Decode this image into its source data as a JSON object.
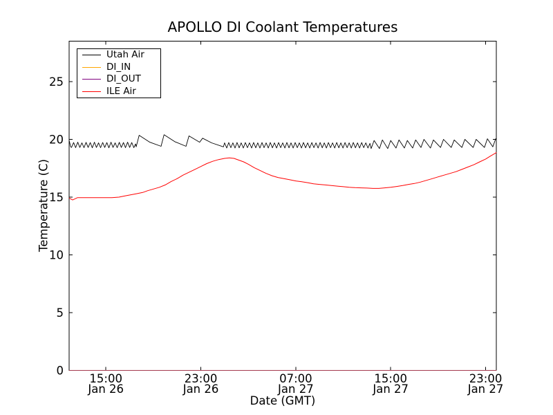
{
  "chart_data": {
    "type": "line",
    "title": "APOLLO DI Coolant Temperatures",
    "xlabel": "Date (GMT)",
    "ylabel": "Temperature (C)",
    "x_unit": "hours since Jan 26 00:00 GMT",
    "xlim": [
      11.9,
      47.9
    ],
    "ylim": [
      0,
      28.5
    ],
    "grid": false,
    "legend_position": "upper left",
    "background_color": "#ffffff",
    "axis_color": "#000000",
    "yticks": [
      0,
      5,
      10,
      15,
      20,
      25
    ],
    "xticks": [
      {
        "value": 15,
        "label": [
          "15:00",
          "Jan 26"
        ]
      },
      {
        "value": 23,
        "label": [
          "23:00",
          "Jan 26"
        ]
      },
      {
        "value": 31,
        "label": [
          "07:00",
          "Jan 27"
        ]
      },
      {
        "value": 39,
        "label": [
          "15:00",
          "Jan 27"
        ]
      },
      {
        "value": 47,
        "label": [
          "23:00",
          "Jan 27"
        ]
      }
    ],
    "series": [
      {
        "name": "Utah Air",
        "color": "#000000",
        "points": [
          [
            11.92,
            19.85
          ],
          [
            12.03,
            19.35
          ],
          [
            12.1,
            19.3
          ],
          [
            12.28,
            19.72
          ],
          [
            12.45,
            19.28
          ],
          [
            12.63,
            19.75
          ],
          [
            12.8,
            19.3
          ],
          [
            12.98,
            19.7
          ],
          [
            13.15,
            19.28
          ],
          [
            13.33,
            19.74
          ],
          [
            13.5,
            19.3
          ],
          [
            13.68,
            19.72
          ],
          [
            13.85,
            19.27
          ],
          [
            14.03,
            19.75
          ],
          [
            14.2,
            19.3
          ],
          [
            14.38,
            19.7
          ],
          [
            14.55,
            19.28
          ],
          [
            14.73,
            19.73
          ],
          [
            14.9,
            19.3
          ],
          [
            15.08,
            19.72
          ],
          [
            15.25,
            19.27
          ],
          [
            15.43,
            19.75
          ],
          [
            15.6,
            19.3
          ],
          [
            15.78,
            19.7
          ],
          [
            15.95,
            19.28
          ],
          [
            16.13,
            19.74
          ],
          [
            16.3,
            19.3
          ],
          [
            16.48,
            19.72
          ],
          [
            16.65,
            19.28
          ],
          [
            16.83,
            19.75
          ],
          [
            17.0,
            19.3
          ],
          [
            17.18,
            19.72
          ],
          [
            17.35,
            19.28
          ],
          [
            17.5,
            19.6
          ],
          [
            17.55,
            19.35
          ],
          [
            17.8,
            20.35
          ],
          [
            18.7,
            19.75
          ],
          [
            19.65,
            19.4
          ],
          [
            19.9,
            20.4
          ],
          [
            20.8,
            19.8
          ],
          [
            21.75,
            19.4
          ],
          [
            22.0,
            20.3
          ],
          [
            22.9,
            19.75
          ],
          [
            23.15,
            20.1
          ],
          [
            23.9,
            19.7
          ],
          [
            24.9,
            19.35
          ],
          [
            25.0,
            19.7
          ],
          [
            25.18,
            19.25
          ],
          [
            25.35,
            19.72
          ],
          [
            25.53,
            19.28
          ],
          [
            25.7,
            19.7
          ],
          [
            25.88,
            19.25
          ],
          [
            26.05,
            19.73
          ],
          [
            26.23,
            19.27
          ],
          [
            26.4,
            19.7
          ],
          [
            26.58,
            19.25
          ],
          [
            26.75,
            19.72
          ],
          [
            26.93,
            19.28
          ],
          [
            27.1,
            19.7
          ],
          [
            27.28,
            19.25
          ],
          [
            27.45,
            19.73
          ],
          [
            27.63,
            19.27
          ],
          [
            27.8,
            19.7
          ],
          [
            27.98,
            19.25
          ],
          [
            28.15,
            19.72
          ],
          [
            28.33,
            19.28
          ],
          [
            28.5,
            19.7
          ],
          [
            28.68,
            19.25
          ],
          [
            28.85,
            19.73
          ],
          [
            29.03,
            19.27
          ],
          [
            29.2,
            19.7
          ],
          [
            29.38,
            19.25
          ],
          [
            29.55,
            19.72
          ],
          [
            29.73,
            19.28
          ],
          [
            29.9,
            19.7
          ],
          [
            30.08,
            19.25
          ],
          [
            30.25,
            19.73
          ],
          [
            30.43,
            19.27
          ],
          [
            30.6,
            19.7
          ],
          [
            30.78,
            19.25
          ],
          [
            30.95,
            19.72
          ],
          [
            31.13,
            19.28
          ],
          [
            31.3,
            19.7
          ],
          [
            31.48,
            19.25
          ],
          [
            31.65,
            19.73
          ],
          [
            31.83,
            19.27
          ],
          [
            32.0,
            19.7
          ],
          [
            32.18,
            19.25
          ],
          [
            32.35,
            19.72
          ],
          [
            32.53,
            19.28
          ],
          [
            32.7,
            19.7
          ],
          [
            32.88,
            19.25
          ],
          [
            33.05,
            19.73
          ],
          [
            33.23,
            19.27
          ],
          [
            33.4,
            19.7
          ],
          [
            33.58,
            19.25
          ],
          [
            33.75,
            19.72
          ],
          [
            33.93,
            19.28
          ],
          [
            34.1,
            19.7
          ],
          [
            34.28,
            19.25
          ],
          [
            34.45,
            19.73
          ],
          [
            34.63,
            19.27
          ],
          [
            34.8,
            19.7
          ],
          [
            34.98,
            19.25
          ],
          [
            35.15,
            19.72
          ],
          [
            35.33,
            19.28
          ],
          [
            35.5,
            19.7
          ],
          [
            35.68,
            19.25
          ],
          [
            35.85,
            19.73
          ],
          [
            36.03,
            19.27
          ],
          [
            36.2,
            19.7
          ],
          [
            36.38,
            19.25
          ],
          [
            36.55,
            19.72
          ],
          [
            36.73,
            19.28
          ],
          [
            36.9,
            19.7
          ],
          [
            37.08,
            19.25
          ],
          [
            37.25,
            19.65
          ],
          [
            37.35,
            19.2
          ],
          [
            37.6,
            19.9
          ],
          [
            38.05,
            19.2
          ],
          [
            38.3,
            19.95
          ],
          [
            38.75,
            19.2
          ],
          [
            39.0,
            19.9
          ],
          [
            39.45,
            19.25
          ],
          [
            39.7,
            19.95
          ],
          [
            40.15,
            19.25
          ],
          [
            40.4,
            19.9
          ],
          [
            40.85,
            19.25
          ],
          [
            41.1,
            19.95
          ],
          [
            41.55,
            19.3
          ],
          [
            41.8,
            20.0
          ],
          [
            42.35,
            19.25
          ],
          [
            42.6,
            19.95
          ],
          [
            43.2,
            19.3
          ],
          [
            43.45,
            20.0
          ],
          [
            44.1,
            19.3
          ],
          [
            44.35,
            19.95
          ],
          [
            45.0,
            19.3
          ],
          [
            45.25,
            20.0
          ],
          [
            45.95,
            19.3
          ],
          [
            46.2,
            20.0
          ],
          [
            46.9,
            19.3
          ],
          [
            47.15,
            20.05
          ],
          [
            47.6,
            19.35
          ],
          [
            47.85,
            20.05
          ],
          [
            47.9,
            19.95
          ]
        ]
      },
      {
        "name": "DI_IN",
        "color": "#ffa500",
        "points": [
          [
            11.92,
            0
          ],
          [
            47.9,
            0
          ]
        ]
      },
      {
        "name": "DI_OUT",
        "color": "#800080",
        "points": [
          [
            11.92,
            0
          ],
          [
            47.9,
            0
          ]
        ]
      },
      {
        "name": "ILE Air",
        "color": "#ff0000",
        "points": [
          [
            11.92,
            14.9
          ],
          [
            12.2,
            14.75
          ],
          [
            12.6,
            14.95
          ],
          [
            13.5,
            14.95
          ],
          [
            14.5,
            14.95
          ],
          [
            15.5,
            14.95
          ],
          [
            16.1,
            15.0
          ],
          [
            16.6,
            15.1
          ],
          [
            17.1,
            15.2
          ],
          [
            17.6,
            15.3
          ],
          [
            18.1,
            15.4
          ],
          [
            18.5,
            15.55
          ],
          [
            19,
            15.7
          ],
          [
            19.5,
            15.85
          ],
          [
            20,
            16.05
          ],
          [
            20.5,
            16.35
          ],
          [
            21,
            16.6
          ],
          [
            21.5,
            16.9
          ],
          [
            22,
            17.15
          ],
          [
            22.5,
            17.4
          ],
          [
            23,
            17.65
          ],
          [
            23.5,
            17.9
          ],
          [
            24,
            18.1
          ],
          [
            24.5,
            18.25
          ],
          [
            25,
            18.35
          ],
          [
            25.4,
            18.4
          ],
          [
            25.8,
            18.35
          ],
          [
            26.2,
            18.2
          ],
          [
            26.6,
            18.05
          ],
          [
            27,
            17.85
          ],
          [
            27.5,
            17.55
          ],
          [
            28,
            17.3
          ],
          [
            28.5,
            17.05
          ],
          [
            29,
            16.85
          ],
          [
            29.5,
            16.7
          ],
          [
            30,
            16.6
          ],
          [
            30.5,
            16.5
          ],
          [
            31,
            16.4
          ],
          [
            31.5,
            16.33
          ],
          [
            32,
            16.25
          ],
          [
            32.5,
            16.15
          ],
          [
            33,
            16.1
          ],
          [
            33.5,
            16.05
          ],
          [
            34,
            16.0
          ],
          [
            34.5,
            15.95
          ],
          [
            35,
            15.9
          ],
          [
            35.5,
            15.85
          ],
          [
            36,
            15.82
          ],
          [
            36.5,
            15.8
          ],
          [
            37,
            15.78
          ],
          [
            37.5,
            15.75
          ],
          [
            38,
            15.75
          ],
          [
            38.5,
            15.8
          ],
          [
            39,
            15.85
          ],
          [
            39.5,
            15.92
          ],
          [
            40,
            16.0
          ],
          [
            40.5,
            16.1
          ],
          [
            41,
            16.18
          ],
          [
            41.5,
            16.3
          ],
          [
            42,
            16.45
          ],
          [
            42.5,
            16.6
          ],
          [
            43,
            16.75
          ],
          [
            43.5,
            16.9
          ],
          [
            44,
            17.05
          ],
          [
            44.5,
            17.2
          ],
          [
            45,
            17.4
          ],
          [
            45.5,
            17.6
          ],
          [
            46,
            17.8
          ],
          [
            46.5,
            18.05
          ],
          [
            47,
            18.3
          ],
          [
            47.4,
            18.55
          ],
          [
            47.9,
            18.85
          ]
        ]
      }
    ]
  }
}
